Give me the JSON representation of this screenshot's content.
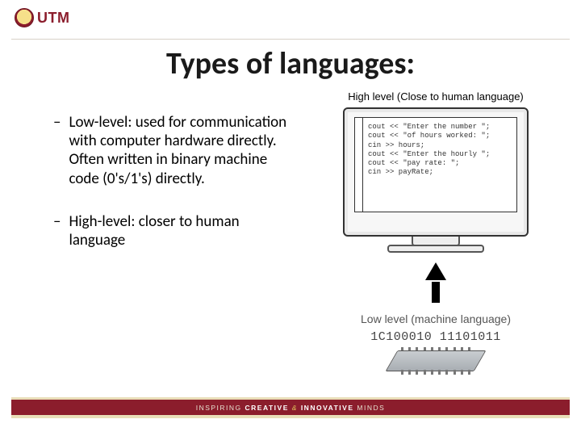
{
  "brand": {
    "name": "UTM",
    "primary_color": "#8b1d2c",
    "accent_color": "#e9deb8"
  },
  "title": "Types of languages:",
  "bullets": [
    {
      "text": "Low-level: used for communication with computer hardware directly.  Often written in binary machine code (0's/1's) directly."
    },
    {
      "text": "High-level: closer to human language"
    }
  ],
  "figure": {
    "high_label": "High level (Close to human language)",
    "code_lines": "cout << \"Enter the number \";\ncout << \"of hours worked: \";\ncin >> hours;\ncout << \"Enter the hourly \";\ncout << \"pay rate: \";\ncin >> payRate;",
    "low_label": "Low level (machine language)",
    "binary": "1C100010 11101011"
  },
  "footer": {
    "left": "INSPIRING",
    "mid1": "CREATIVE",
    "amp": "&",
    "mid2": "INNOVATIVE",
    "right": "MINDS"
  },
  "colors": {
    "text": "#1a1a1a",
    "rule": "#d8d2c8",
    "background": "#ffffff"
  }
}
